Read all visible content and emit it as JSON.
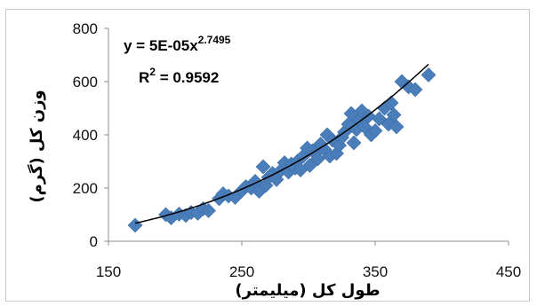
{
  "chart_data": {
    "type": "scatter",
    "title": "",
    "xlabel": "طول کل (میلیمتر)",
    "ylabel": "وزن کل (گرم)",
    "xlim": [
      150,
      450
    ],
    "ylim": [
      0,
      800
    ],
    "xticks": [
      150,
      250,
      350,
      450
    ],
    "yticks": [
      0,
      200,
      400,
      600,
      800
    ],
    "grid": false,
    "legend": "none",
    "marker": "diamond",
    "marker_color": "#4a7ebb",
    "trendline": {
      "type": "power",
      "coefficient": 5e-05,
      "exponent": 2.7495,
      "color": "#000000",
      "equation_prefix": "y = 5E-05x",
      "equation_exponent": "2.7495",
      "r2_prefix": "R",
      "r2_sup": "2",
      "r2_suffix": " = 0.9592"
    },
    "series": [
      {
        "points": [
          [
            170,
            60
          ],
          [
            193,
            100
          ],
          [
            197,
            88
          ],
          [
            203,
            102
          ],
          [
            208,
            97
          ],
          [
            212,
            108
          ],
          [
            217,
            105
          ],
          [
            221,
            122
          ],
          [
            225,
            115
          ],
          [
            233,
            160
          ],
          [
            236,
            178
          ],
          [
            240,
            170
          ],
          [
            245,
            165
          ],
          [
            250,
            190
          ],
          [
            253,
            205
          ],
          [
            257,
            200
          ],
          [
            260,
            225
          ],
          [
            263,
            188
          ],
          [
            266,
            280
          ],
          [
            268,
            210
          ],
          [
            270,
            240
          ],
          [
            273,
            255
          ],
          [
            276,
            232
          ],
          [
            279,
            265
          ],
          [
            282,
            295
          ],
          [
            285,
            260
          ],
          [
            287,
            290
          ],
          [
            290,
            275
          ],
          [
            292,
            302
          ],
          [
            294,
            268
          ],
          [
            296,
            320
          ],
          [
            299,
            350
          ],
          [
            301,
            285
          ],
          [
            303,
            340
          ],
          [
            305,
            330
          ],
          [
            307,
            310
          ],
          [
            309,
            365
          ],
          [
            312,
            345
          ],
          [
            314,
            400
          ],
          [
            316,
            320
          ],
          [
            318,
            380
          ],
          [
            321,
            330
          ],
          [
            323,
            360
          ],
          [
            325,
            390
          ],
          [
            327,
            410
          ],
          [
            330,
            440
          ],
          [
            332,
            480
          ],
          [
            334,
            370
          ],
          [
            336,
            420
          ],
          [
            338,
            455
          ],
          [
            340,
            490
          ],
          [
            342,
            430
          ],
          [
            345,
            470
          ],
          [
            347,
            400
          ],
          [
            350,
            415
          ],
          [
            353,
            460
          ],
          [
            357,
            500
          ],
          [
            360,
            440
          ],
          [
            362,
            520
          ],
          [
            364,
            475
          ],
          [
            366,
            430
          ],
          [
            370,
            600
          ],
          [
            375,
            580
          ],
          [
            380,
            570
          ],
          [
            390,
            625
          ]
        ]
      }
    ]
  }
}
